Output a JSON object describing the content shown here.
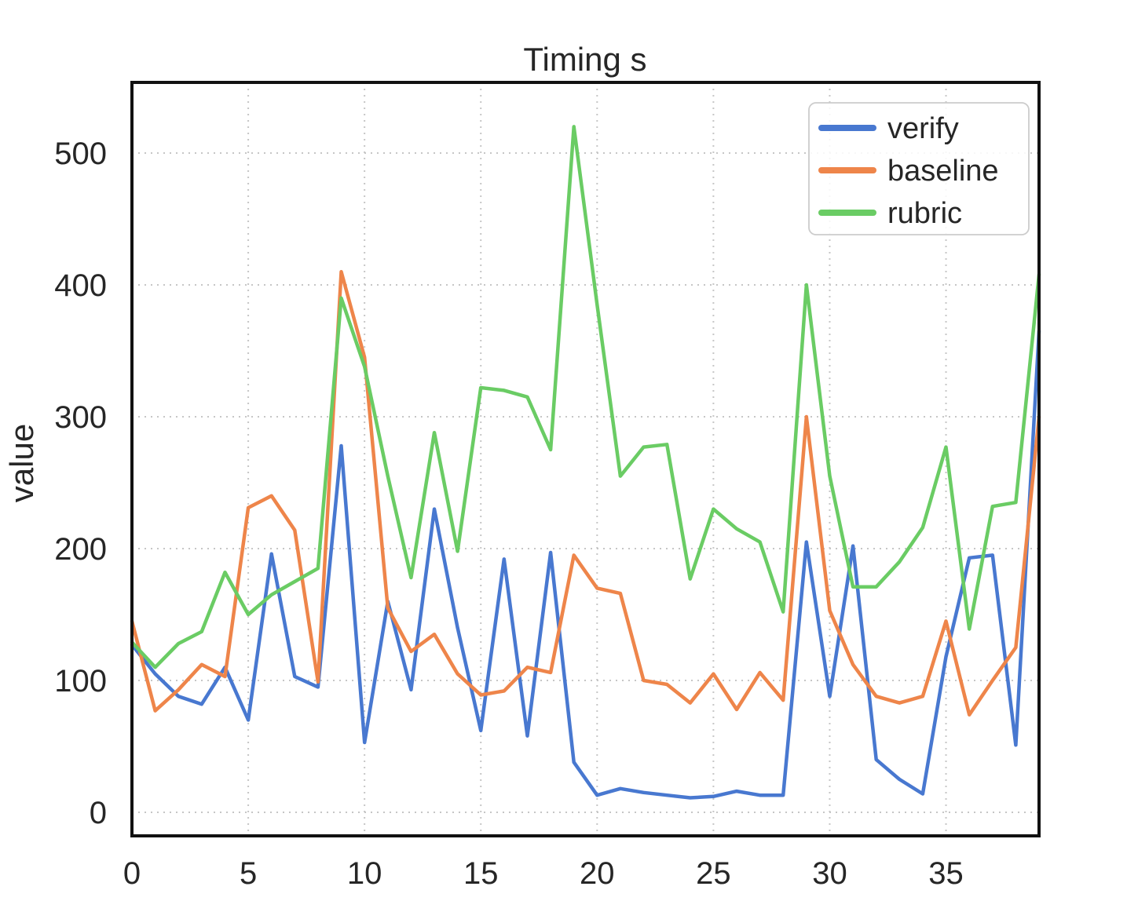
{
  "title": "Timing s",
  "chart_data": {
    "type": "line",
    "title": "Timing s",
    "xlabel": "",
    "ylabel": "value",
    "x": [
      0,
      1,
      2,
      3,
      4,
      5,
      6,
      7,
      8,
      9,
      10,
      11,
      12,
      13,
      14,
      15,
      16,
      17,
      18,
      19,
      20,
      21,
      22,
      23,
      24,
      25,
      26,
      27,
      28,
      29,
      30,
      31,
      32,
      33,
      34,
      35,
      36,
      37,
      38,
      39
    ],
    "xticks": [
      0,
      5,
      10,
      15,
      20,
      25,
      30,
      35
    ],
    "yticks": [
      0,
      100,
      200,
      300,
      400,
      500
    ],
    "xlim": [
      0,
      39
    ],
    "ylim": [
      -18,
      554
    ],
    "grid": "dotted",
    "legend_position": "upper right",
    "series": [
      {
        "name": "verify",
        "color": "#4878d0",
        "values": [
          127,
          105,
          88,
          82,
          110,
          70,
          196,
          103,
          95,
          278,
          53,
          160,
          93,
          230,
          140,
          62,
          192,
          58,
          197,
          38,
          13,
          18,
          15,
          13,
          11,
          12,
          16,
          13,
          13,
          205,
          88,
          202,
          40,
          25,
          14,
          118,
          193,
          195,
          51,
          365
        ]
      },
      {
        "name": "baseline",
        "color": "#ee854a",
        "values": [
          145,
          77,
          93,
          112,
          103,
          231,
          240,
          214,
          99,
          410,
          345,
          155,
          122,
          135,
          105,
          89,
          92,
          110,
          106,
          195,
          170,
          166,
          100,
          97,
          83,
          105,
          78,
          106,
          85,
          300,
          153,
          112,
          88,
          83,
          88,
          145,
          74,
          100,
          125,
          300
        ]
      },
      {
        "name": "rubric",
        "color": "#6acc64",
        "values": [
          129,
          110,
          128,
          137,
          182,
          150,
          165,
          175,
          185,
          390,
          338,
          255,
          178,
          288,
          198,
          322,
          320,
          315,
          275,
          520,
          385,
          255,
          277,
          279,
          177,
          230,
          215,
          205,
          152,
          400,
          255,
          171,
          171,
          190,
          216,
          277,
          139,
          232,
          235,
          408
        ]
      }
    ]
  },
  "style": {
    "grid_color": "#c6c6c6",
    "frame_color": "#111111",
    "text_color": "#262626",
    "background": "#ffffff"
  }
}
